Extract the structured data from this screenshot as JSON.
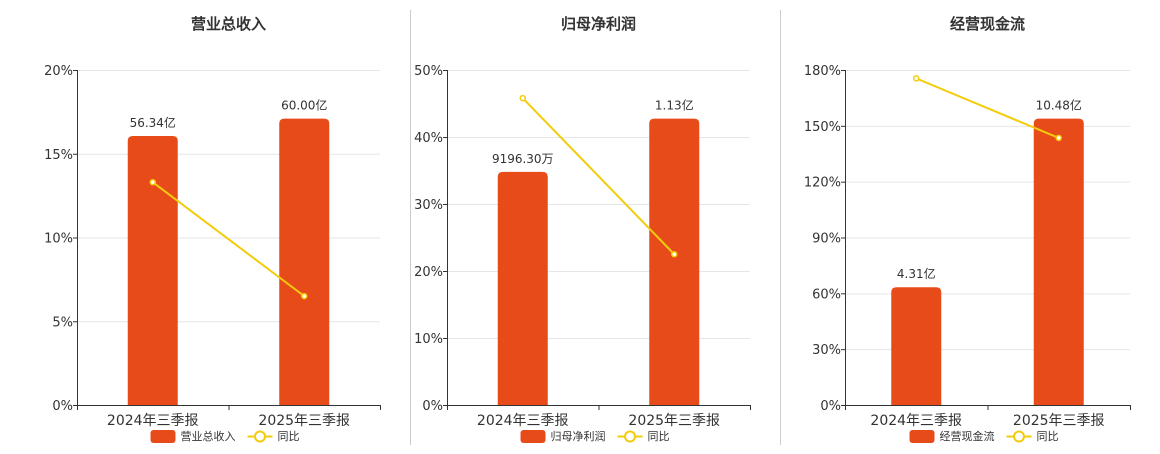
{
  "chart_data": [
    {
      "type": "bar",
      "title": "营业总收入",
      "categories": [
        "2024年三季报",
        "2025年三季报"
      ],
      "bar_series": {
        "name": "营业总收入",
        "values": [
          56.34,
          60.0
        ],
        "labels": [
          "56.34亿",
          "60.00亿"
        ],
        "unit": "亿"
      },
      "line_series": {
        "name": "同比",
        "values": [
          13.3,
          6.5
        ]
      },
      "yticks": [
        "0%",
        "5%",
        "10%",
        "15%",
        "20%"
      ],
      "ylim": [
        0,
        20
      ]
    },
    {
      "type": "bar",
      "title": "归母净利润",
      "categories": [
        "2024年三季报",
        "2025年三季报"
      ],
      "bar_series": {
        "name": "归母净利润",
        "values": [
          0.9196,
          1.13
        ],
        "labels": [
          "9196.30万",
          "1.13亿"
        ],
        "unit": "亿"
      },
      "line_series": {
        "name": "同比",
        "values": [
          45.8,
          22.5
        ]
      },
      "yticks": [
        "0%",
        "10%",
        "20%",
        "30%",
        "40%",
        "50%"
      ],
      "ylim": [
        0,
        50
      ]
    },
    {
      "type": "bar",
      "title": "经营现金流",
      "categories": [
        "2024年三季报",
        "2025年三季报"
      ],
      "bar_series": {
        "name": "经营现金流",
        "values": [
          4.31,
          10.48
        ],
        "labels": [
          "4.31亿",
          "10.48亿"
        ],
        "unit": "亿"
      },
      "line_series": {
        "name": "同比",
        "values": [
          175.5,
          143.5
        ]
      },
      "yticks": [
        "0%",
        "30%",
        "60%",
        "90%",
        "120%",
        "150%",
        "180%"
      ],
      "ylim": [
        0,
        180
      ]
    }
  ],
  "colors": {
    "bar": "#e84b1a",
    "line": "#f2cc0c",
    "axis": "#333333",
    "grid": "#e6e6e6",
    "divider": "#cccccc",
    "text": "#333333"
  }
}
